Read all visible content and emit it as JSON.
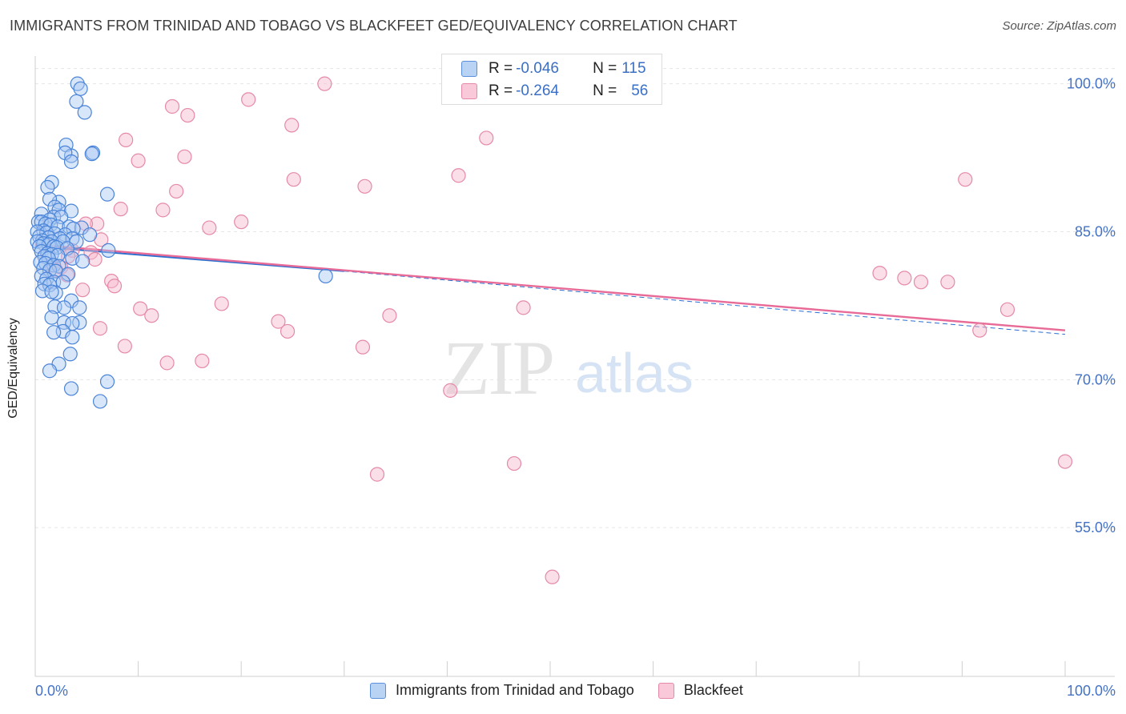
{
  "title": "IMMIGRANTS FROM TRINIDAD AND TOBAGO VS BLACKFEET GED/EQUIVALENCY CORRELATION CHART",
  "source": "Source: ZipAtlas.com",
  "watermark": {
    "zip": "ZIP",
    "atlas": "atlas"
  },
  "colors": {
    "blue_fill": "#a9c8f2",
    "blue_stroke": "#4a84d8",
    "blue_line": "#2b6fd1",
    "pink_fill": "#f7b8cd",
    "pink_stroke": "#e589a8",
    "pink_line": "#e86a97",
    "axis_text": "#4472c4",
    "grid": "#e6e6e6"
  },
  "legend": {
    "blue": {
      "r_label": "R = ",
      "r_value": "-0.046",
      "n_label": "N = ",
      "n_value": "115"
    },
    "pink": {
      "r_label": "R = ",
      "r_value": "-0.264",
      "n_label": "N = ",
      "n_value": "56"
    }
  },
  "chart_data": {
    "type": "scatter",
    "title": "IMMIGRANTS FROM TRINIDAD AND TOBAGO VS BLACKFEET GED/EQUIVALENCY CORRELATION CHART",
    "xlabel": "",
    "ylabel": "GED/Equivalency",
    "xlim": [
      0,
      100
    ],
    "ylim": [
      40,
      102
    ],
    "x_tick_labels": [
      {
        "value": 0,
        "label": "0.0%"
      },
      {
        "value": 100,
        "label": "100.0%"
      }
    ],
    "y_tick_labels": [
      {
        "value": 100,
        "label": "100.0%"
      },
      {
        "value": 85,
        "label": "85.0%"
      },
      {
        "value": 70,
        "label": "70.0%"
      },
      {
        "value": 55,
        "label": "55.0%"
      }
    ],
    "series": [
      {
        "name": "Immigrants from Trinidad and Tobago",
        "color": "blue",
        "trend": {
          "x0": 0,
          "y0": 83.5,
          "x1": 30,
          "y1": 81.0,
          "dashed_to": 100,
          "dashed_y": 74.6
        },
        "points": [
          [
            4.1,
            100.0
          ],
          [
            4.4,
            99.5
          ],
          [
            4.0,
            98.2
          ],
          [
            4.8,
            97.1
          ],
          [
            3.0,
            93.8
          ],
          [
            5.6,
            93.0
          ],
          [
            5.5,
            92.9
          ],
          [
            3.5,
            92.7
          ],
          [
            2.9,
            93.0
          ],
          [
            3.5,
            92.1
          ],
          [
            1.6,
            90.0
          ],
          [
            7.0,
            88.8
          ],
          [
            1.2,
            89.5
          ],
          [
            2.3,
            88.0
          ],
          [
            1.4,
            88.3
          ],
          [
            1.9,
            87.5
          ],
          [
            2.3,
            87.2
          ],
          [
            3.5,
            87.1
          ],
          [
            0.6,
            86.8
          ],
          [
            1.8,
            86.5
          ],
          [
            2.5,
            86.5
          ],
          [
            1.4,
            86.2
          ],
          [
            0.3,
            86.0
          ],
          [
            0.6,
            86.0
          ],
          [
            1.0,
            85.8
          ],
          [
            1.5,
            85.7
          ],
          [
            2.2,
            85.5
          ],
          [
            3.3,
            85.5
          ],
          [
            4.5,
            85.4
          ],
          [
            3.7,
            85.3
          ],
          [
            0.8,
            85.1
          ],
          [
            0.2,
            85.0
          ],
          [
            1.1,
            84.9
          ],
          [
            1.9,
            84.8
          ],
          [
            2.9,
            84.7
          ],
          [
            5.3,
            84.7
          ],
          [
            0.4,
            84.5
          ],
          [
            1.3,
            84.4
          ],
          [
            2.4,
            84.3
          ],
          [
            3.6,
            84.3
          ],
          [
            0.7,
            84.1
          ],
          [
            0.2,
            84.0
          ],
          [
            1.6,
            84.0
          ],
          [
            2.7,
            84.0
          ],
          [
            4.0,
            84.0
          ],
          [
            0.8,
            83.8
          ],
          [
            1.3,
            83.7
          ],
          [
            0.4,
            83.5
          ],
          [
            1.8,
            83.5
          ],
          [
            2.1,
            83.4
          ],
          [
            3.1,
            83.3
          ],
          [
            7.1,
            83.1
          ],
          [
            0.6,
            83.0
          ],
          [
            1.2,
            82.8
          ],
          [
            1.6,
            82.7
          ],
          [
            2.2,
            82.6
          ],
          [
            0.9,
            82.5
          ],
          [
            1.3,
            82.3
          ],
          [
            3.6,
            82.3
          ],
          [
            4.6,
            82.0
          ],
          [
            0.5,
            81.9
          ],
          [
            1.0,
            81.8
          ],
          [
            1.8,
            81.6
          ],
          [
            2.3,
            81.5
          ],
          [
            0.8,
            81.3
          ],
          [
            1.4,
            81.1
          ],
          [
            2.0,
            81.0
          ],
          [
            3.2,
            80.7
          ],
          [
            0.6,
            80.5
          ],
          [
            1.1,
            80.2
          ],
          [
            1.8,
            79.9
          ],
          [
            2.7,
            79.9
          ],
          [
            0.9,
            79.7
          ],
          [
            1.4,
            79.6
          ],
          [
            0.7,
            79.0
          ],
          [
            2.0,
            78.8
          ],
          [
            1.6,
            78.9
          ],
          [
            3.5,
            78.0
          ],
          [
            1.9,
            77.4
          ],
          [
            2.8,
            77.3
          ],
          [
            4.3,
            77.3
          ],
          [
            1.6,
            76.3
          ],
          [
            2.8,
            75.8
          ],
          [
            4.3,
            75.8
          ],
          [
            3.6,
            75.7
          ],
          [
            2.7,
            74.9
          ],
          [
            1.8,
            74.8
          ],
          [
            3.6,
            74.3
          ],
          [
            3.4,
            72.6
          ],
          [
            2.3,
            71.6
          ],
          [
            1.4,
            70.9
          ],
          [
            7.0,
            69.8
          ],
          [
            3.5,
            69.1
          ],
          [
            6.3,
            67.8
          ],
          [
            28.2,
            80.5
          ]
        ]
      },
      {
        "name": "Blackfeet",
        "color": "pink",
        "trend": {
          "x0": 0,
          "y0": 83.7,
          "x1": 100,
          "y1": 75.0
        },
        "points": [
          [
            28.1,
            100.0
          ],
          [
            20.7,
            98.4
          ],
          [
            13.3,
            97.7
          ],
          [
            14.8,
            96.8
          ],
          [
            24.9,
            95.8
          ],
          [
            43.8,
            94.5
          ],
          [
            8.8,
            94.3
          ],
          [
            14.5,
            92.6
          ],
          [
            10.0,
            92.2
          ],
          [
            41.1,
            90.7
          ],
          [
            25.1,
            90.3
          ],
          [
            32.0,
            89.6
          ],
          [
            90.3,
            90.3
          ],
          [
            13.7,
            89.1
          ],
          [
            8.3,
            87.3
          ],
          [
            12.4,
            87.2
          ],
          [
            20.0,
            86.0
          ],
          [
            6.0,
            85.8
          ],
          [
            16.9,
            85.4
          ],
          [
            4.9,
            85.8
          ],
          [
            6.4,
            84.2
          ],
          [
            3.6,
            83.1
          ],
          [
            5.4,
            82.9
          ],
          [
            3.2,
            82.5
          ],
          [
            5.8,
            82.2
          ],
          [
            1.6,
            81.6
          ],
          [
            2.5,
            81.4
          ],
          [
            2.0,
            81.1
          ],
          [
            3.1,
            80.6
          ],
          [
            82.0,
            80.8
          ],
          [
            84.4,
            80.3
          ],
          [
            86.0,
            79.9
          ],
          [
            88.6,
            79.9
          ],
          [
            7.4,
            80.0
          ],
          [
            7.7,
            79.5
          ],
          [
            4.6,
            79.1
          ],
          [
            18.1,
            77.7
          ],
          [
            10.2,
            77.2
          ],
          [
            34.4,
            76.5
          ],
          [
            47.4,
            77.3
          ],
          [
            11.3,
            76.5
          ],
          [
            23.6,
            75.9
          ],
          [
            94.4,
            77.1
          ],
          [
            6.3,
            75.2
          ],
          [
            24.5,
            74.9
          ],
          [
            91.7,
            75.0
          ],
          [
            8.7,
            73.4
          ],
          [
            31.8,
            73.3
          ],
          [
            12.8,
            71.7
          ],
          [
            16.2,
            71.9
          ],
          [
            40.3,
            68.9
          ],
          [
            33.2,
            60.4
          ],
          [
            46.5,
            61.5
          ],
          [
            100.0,
            61.7
          ],
          [
            50.2,
            50.0
          ]
        ]
      }
    ]
  },
  "bottom_legend": {
    "blue_label": "Immigrants from Trinidad and Tobago",
    "pink_label": "Blackfeet"
  }
}
